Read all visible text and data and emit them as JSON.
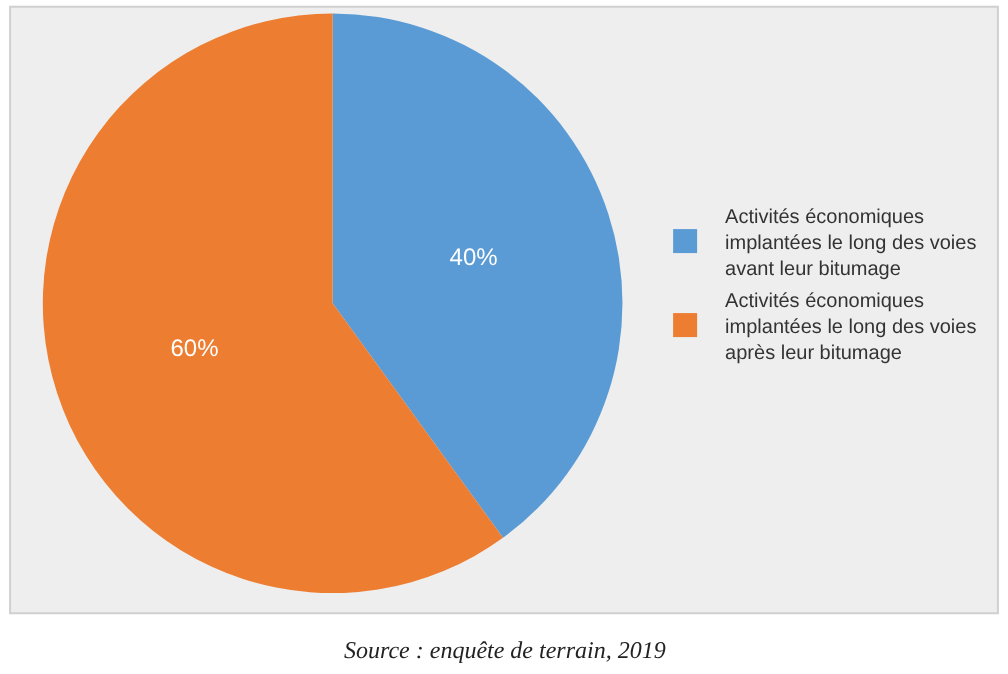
{
  "chart_data": {
    "type": "pie",
    "categories": [
      "Activités économiques implantées le long des voies avant leur bitumage",
      "Activités économiques implantées le long des voies après leur bitumage"
    ],
    "values": [
      40,
      60
    ],
    "colors": [
      "#5b9bd5",
      "#ed7d31"
    ],
    "value_labels": [
      "40%",
      "60%"
    ],
    "legend": "right",
    "annotations": [
      "Source : enquête de terrain, 2019"
    ]
  }
}
